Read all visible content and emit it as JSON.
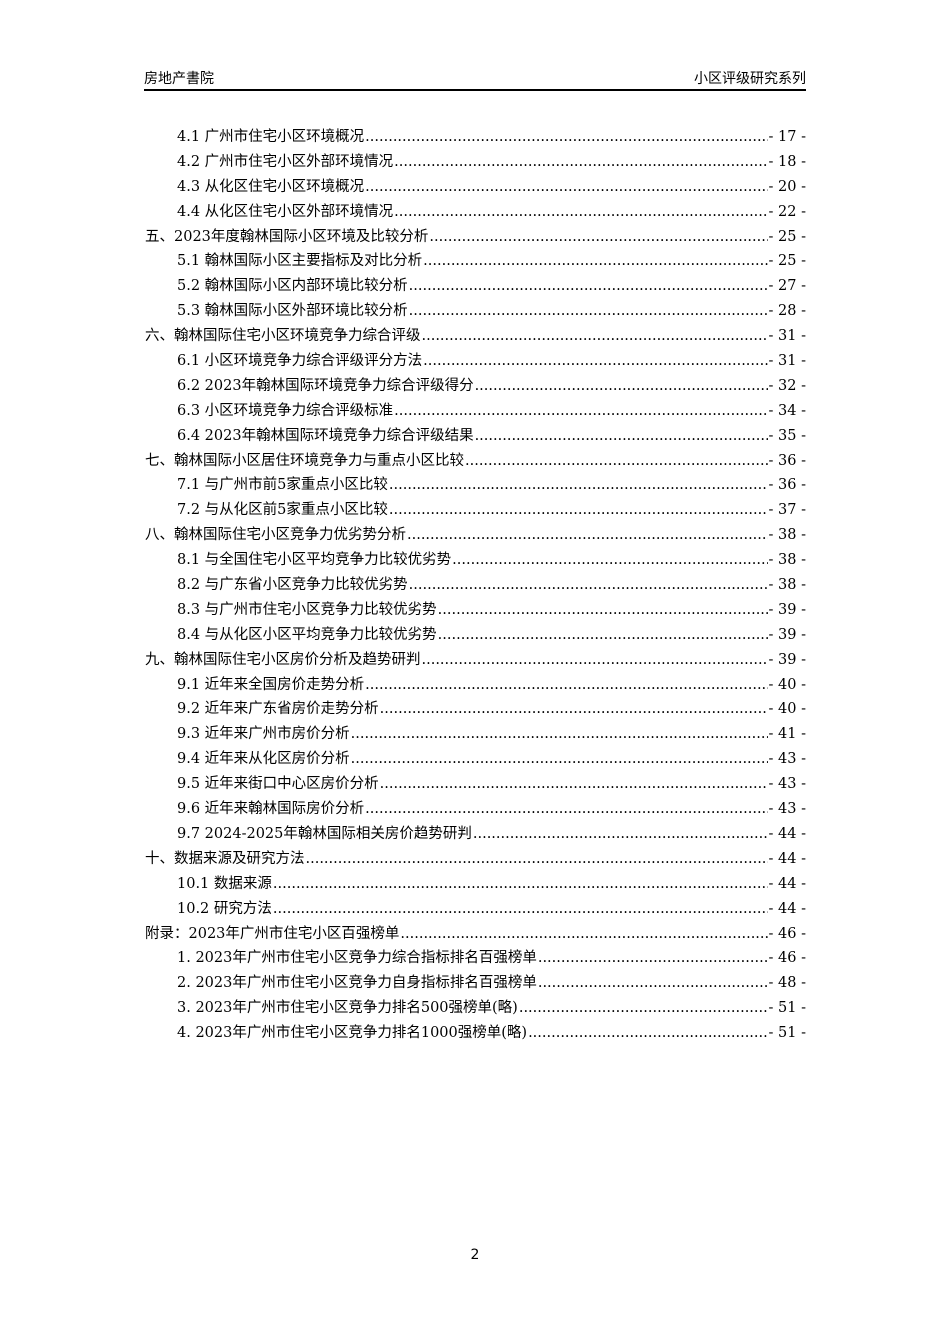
{
  "header": {
    "left": "房地产書院",
    "right": "小区评级研究系列"
  },
  "toc": [
    {
      "level": 2,
      "title": "4.1 广州市住宅小区环境概况",
      "page": "- 17 -"
    },
    {
      "level": 2,
      "title": "4.2 广州市住宅小区外部环境情况",
      "page": "- 18 -"
    },
    {
      "level": 2,
      "title": "4.3 从化区住宅小区环境概况",
      "page": "- 20 -"
    },
    {
      "level": 2,
      "title": "4.4 从化区住宅小区外部环境情况",
      "page": "- 22 -"
    },
    {
      "level": 1,
      "title": "五、2023年度翰林国际小区环境及比较分析",
      "page": "- 25 -"
    },
    {
      "level": 2,
      "title": "5.1 翰林国际小区主要指标及对比分析",
      "page": "- 25 -"
    },
    {
      "level": 2,
      "title": "5.2 翰林国际小区内部环境比较分析",
      "page": "- 27 -"
    },
    {
      "level": 2,
      "title": "5.3 翰林国际小区外部环境比较分析",
      "page": "- 28 -"
    },
    {
      "level": 1,
      "title": "六、翰林国际住宅小区环境竞争力综合评级",
      "page": "- 31 -"
    },
    {
      "level": 2,
      "title": "6.1 小区环境竞争力综合评级评分方法",
      "page": "- 31 -"
    },
    {
      "level": 2,
      "title": "6.2 2023年翰林国际环境竞争力综合评级得分",
      "page": "- 32 -"
    },
    {
      "level": 2,
      "title": "6.3 小区环境竞争力综合评级标准",
      "page": "- 34 -"
    },
    {
      "level": 2,
      "title": "6.4 2023年翰林国际环境竞争力综合评级结果",
      "page": "- 35 -"
    },
    {
      "level": 1,
      "title": "七、翰林国际小区居住环境竞争力与重点小区比较",
      "page": "- 36 -"
    },
    {
      "level": 2,
      "title": "7.1 与广州市前5家重点小区比较",
      "page": "- 36 -"
    },
    {
      "level": 2,
      "title": "7.2 与从化区前5家重点小区比较",
      "page": "- 37 -"
    },
    {
      "level": 1,
      "title": "八、翰林国际住宅小区竞争力优劣势分析",
      "page": "- 38 -"
    },
    {
      "level": 2,
      "title": "8.1 与全国住宅小区平均竞争力比较优劣势",
      "page": "- 38 -"
    },
    {
      "level": 2,
      "title": "8.2 与广东省小区竞争力比较优劣势",
      "page": "- 38 -"
    },
    {
      "level": 2,
      "title": "8.3 与广州市住宅小区竞争力比较优劣势",
      "page": "- 39 -"
    },
    {
      "level": 2,
      "title": "8.4 与从化区小区平均竞争力比较优劣势",
      "page": "- 39 -"
    },
    {
      "level": 1,
      "title": "九、翰林国际住宅小区房价分析及趋势研判",
      "page": "- 39 -"
    },
    {
      "level": 2,
      "title": "9.1 近年来全国房价走势分析",
      "page": "- 40 -"
    },
    {
      "level": 2,
      "title": "9.2 近年来广东省房价走势分析",
      "page": "- 40 -"
    },
    {
      "level": 2,
      "title": "9.3 近年来广州市房价分析",
      "page": "- 41 -"
    },
    {
      "level": 2,
      "title": "9.4 近年来从化区房价分析",
      "page": "- 43 -"
    },
    {
      "level": 2,
      "title": "9.5 近年来街口中心区房价分析",
      "page": "- 43 -"
    },
    {
      "level": 2,
      "title": "9.6 近年来翰林国际房价分析",
      "page": "- 43 -"
    },
    {
      "level": 2,
      "title": "9.7 2024-2025年翰林国际相关房价趋势研判",
      "page": "- 44 -"
    },
    {
      "level": 1,
      "title": "十、数据来源及研究方法",
      "page": "- 44 -"
    },
    {
      "level": 2,
      "title": "10.1 数据来源",
      "page": "- 44 -"
    },
    {
      "level": 2,
      "title": "10.2 研究方法",
      "page": "- 44 -"
    },
    {
      "level": 1,
      "title": "附录：2023年广州市住宅小区百强榜单",
      "page": "- 46 -"
    },
    {
      "level": 2,
      "title": "1. 2023年广州市住宅小区竞争力综合指标排名百强榜单",
      "page": "- 46 -"
    },
    {
      "level": 2,
      "title": "2. 2023年广州市住宅小区竞争力自身指标排名百强榜单",
      "page": "- 48 -"
    },
    {
      "level": 2,
      "title": "3. 2023年广州市住宅小区竞争力排名500强榜单(略)",
      "page": "- 51 -"
    },
    {
      "level": 2,
      "title": "4. 2023年广州市住宅小区竞争力排名1000强榜单(略)",
      "page": "- 51 -"
    }
  ],
  "footer": {
    "page_number": "2"
  }
}
